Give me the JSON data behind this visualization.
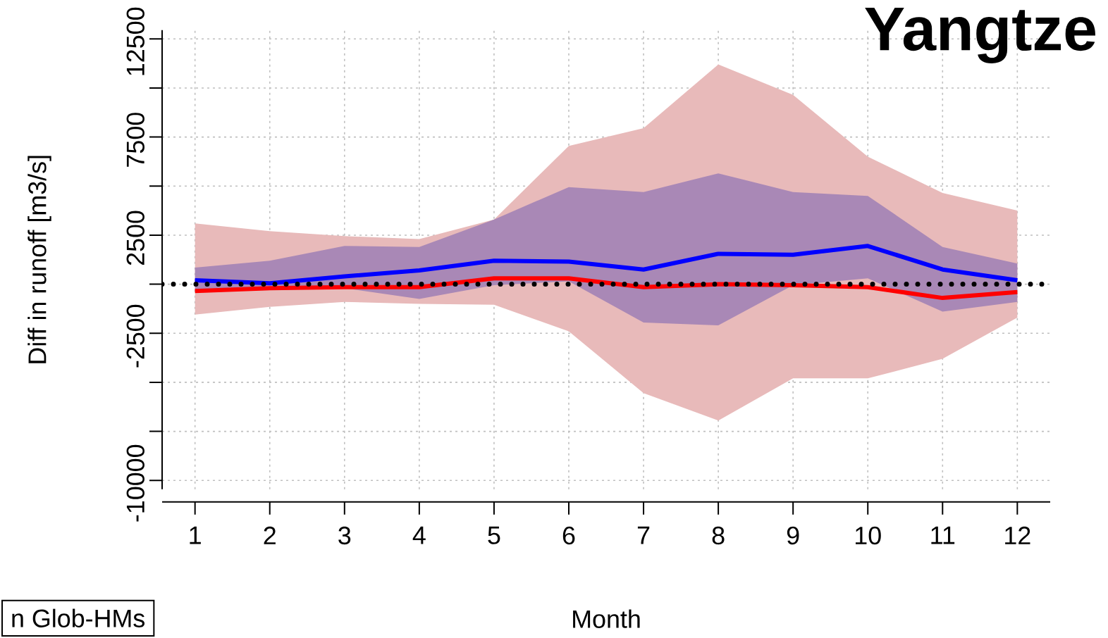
{
  "chart_data": {
    "type": "line",
    "title": "Yangtze",
    "xlabel": "Month",
    "ylabel": "Diff in runoff [m3/s]",
    "x": [
      1,
      2,
      3,
      4,
      5,
      6,
      7,
      8,
      9,
      10,
      11,
      12
    ],
    "xlim": [
      0.56,
      12.44
    ],
    "xticks": [
      1,
      2,
      3,
      4,
      5,
      6,
      7,
      8,
      9,
      10,
      11,
      12
    ],
    "ylim": [
      -10450,
      12950
    ],
    "yticks": [
      {
        "value": -10000,
        "label": "-10000"
      },
      {
        "value": -7500,
        "label": null
      },
      {
        "value": -5000,
        "label": null
      },
      {
        "value": -2500,
        "label": "-2500"
      },
      {
        "value": 0,
        "label": null
      },
      {
        "value": 2500,
        "label": "2500"
      },
      {
        "value": 5000,
        "label": null
      },
      {
        "value": 7500,
        "label": "7500"
      },
      {
        "value": 10000,
        "label": null
      },
      {
        "value": 12500,
        "label": "12500"
      }
    ],
    "grid": true,
    "series": [
      {
        "color": "#ff0000",
        "values": [
          -350,
          -200,
          -150,
          -150,
          300,
          300,
          -150,
          0,
          -50,
          -150,
          -700,
          -400
        ],
        "upper": [
          3100,
          2700,
          2450,
          2300,
          3300,
          7050,
          7950,
          11200,
          9650,
          6500,
          4650,
          3750
        ],
        "lower": [
          -1550,
          -1150,
          -900,
          -1000,
          -1050,
          -2400,
          -5550,
          -6950,
          -4800,
          -4800,
          -3800,
          -1700
        ]
      },
      {
        "color": "#0000ff",
        "values": [
          200,
          50,
          400,
          700,
          1200,
          1150,
          750,
          1550,
          1500,
          1950,
          750,
          200
        ],
        "upper": [
          850,
          1200,
          1950,
          1900,
          3300,
          4950,
          4700,
          5650,
          4700,
          4500,
          1900,
          1050
        ],
        "lower": [
          -350,
          -300,
          -200,
          -750,
          -50,
          150,
          -1950,
          -2100,
          -50,
          300,
          -1400,
          -900
        ]
      }
    ],
    "ref_lines": [
      {
        "axis": "y",
        "value": 0,
        "color": "#000000",
        "line_style": "dotted"
      }
    ],
    "annotations": [
      "n Glob-HMs"
    ]
  }
}
